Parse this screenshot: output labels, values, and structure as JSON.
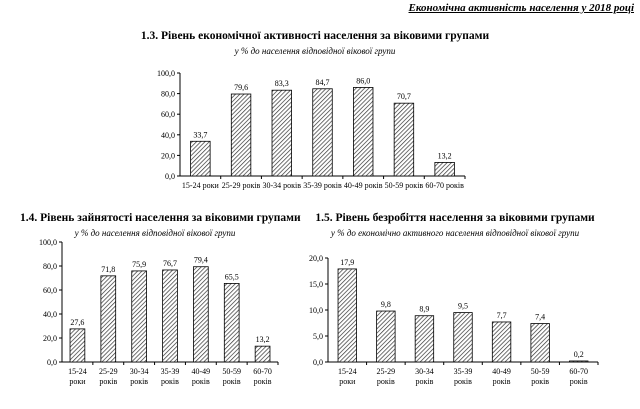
{
  "header": {
    "text": "Економічна активність населення у 2018 році"
  },
  "chart_data": [
    {
      "type": "bar",
      "title": "1.3. Рівень економічної активності населення за віковими групами",
      "subtitle": "у % до населення відповідної вікової групи",
      "categories": [
        "15-24 роки",
        "25-29 років",
        "30-34 років",
        "35-39 років",
        "40-49 років",
        "50-59 років",
        "60-70 років"
      ],
      "values": [
        33.7,
        79.6,
        83.3,
        84.7,
        86.0,
        70.7,
        13.2
      ],
      "labels": [
        "33,7",
        "79,6",
        "83,3",
        "84,7",
        "86,0",
        "70,7",
        "13,2"
      ],
      "ylim": [
        0,
        100
      ],
      "yticks": [
        "0,0",
        "20,0",
        "40,0",
        "60,0",
        "80,0",
        "100,0"
      ],
      "grid": false
    },
    {
      "type": "bar",
      "title": "1.4. Рівень зайнятості населення за віковими групами",
      "subtitle": "у % до населення відповідної вікової групи",
      "categories": [
        "15-24 роки",
        "25-29 років",
        "30-34 років",
        "35-39 років",
        "40-49 років",
        "50-59 років",
        "60-70 років"
      ],
      "values": [
        27.6,
        71.8,
        75.9,
        76.7,
        79.4,
        65.5,
        13.2
      ],
      "labels": [
        "27,6",
        "71,8",
        "75,9",
        "76,7",
        "79,4",
        "65,5",
        "13,2"
      ],
      "ylim": [
        0,
        100
      ],
      "yticks": [
        "0,0",
        "20,0",
        "40,0",
        "60,0",
        "80,0",
        "100,0"
      ],
      "grid": false
    },
    {
      "type": "bar",
      "title": "1.5. Рівень безробіття населення за віковими групами",
      "subtitle": "у % до економічно активного населення відповідної вікової групи",
      "categories": [
        "15-24 роки",
        "25-29 років",
        "30-34 років",
        "35-39 років",
        "40-49 років",
        "50-59 років",
        "60-70 років"
      ],
      "values": [
        17.9,
        9.8,
        8.9,
        9.5,
        7.7,
        7.4,
        0.2
      ],
      "labels": [
        "17,9",
        "9,8",
        "8,9",
        "9,5",
        "7,7",
        "7,4",
        "0,2"
      ],
      "ylim": [
        0,
        20
      ],
      "yticks": [
        "0,0",
        "5,0",
        "10,0",
        "15,0",
        "20,0"
      ],
      "grid": false
    }
  ]
}
